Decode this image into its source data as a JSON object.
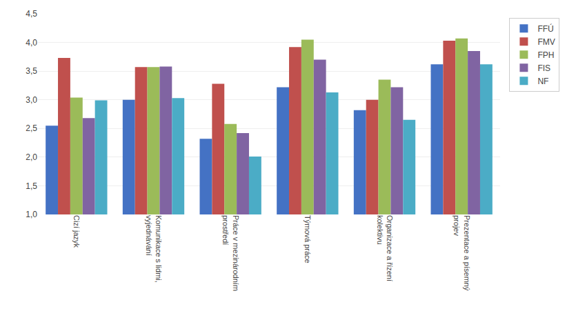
{
  "chart_data": {
    "type": "bar",
    "categories": [
      "Cizí jazyk",
      "Komunikace s lidmi,\nvyjednávání",
      "Práce v mezinárodním\nprostředí",
      "Týmová práce",
      "Organizace a řízení\nkolektivu",
      "Prezentace a písemný\nprojev"
    ],
    "series": [
      {
        "name": "FFÚ",
        "color": "#4472C4",
        "values": [
          2.55,
          3.0,
          2.32,
          3.22,
          2.82,
          3.62
        ]
      },
      {
        "name": "FMV",
        "color": "#C0504D",
        "values": [
          3.73,
          3.57,
          3.28,
          3.92,
          3.0,
          4.03
        ]
      },
      {
        "name": "FPH",
        "color": "#9BBB59",
        "values": [
          3.04,
          3.57,
          2.58,
          4.05,
          3.35,
          4.07
        ]
      },
      {
        "name": "FIS",
        "color": "#8064A2",
        "values": [
          2.68,
          3.58,
          2.42,
          3.7,
          3.22,
          3.85
        ]
      },
      {
        "name": "NF",
        "color": "#4BACC6",
        "values": [
          2.99,
          3.03,
          2.01,
          3.13,
          2.65,
          3.62
        ]
      }
    ],
    "ylim": [
      1,
      4.5
    ],
    "yticks": [
      {
        "value": 1,
        "label": "1,0"
      },
      {
        "value": 1.5,
        "label": "1,5"
      },
      {
        "value": 2,
        "label": "2,0"
      },
      {
        "value": 2.5,
        "label": "2,5"
      },
      {
        "value": 3,
        "label": "3,0"
      },
      {
        "value": 3.5,
        "label": "3,5"
      },
      {
        "value": 4,
        "label": "4,0"
      },
      {
        "value": 4.5,
        "label": "4,5"
      }
    ],
    "grid": true,
    "legend": "right"
  }
}
